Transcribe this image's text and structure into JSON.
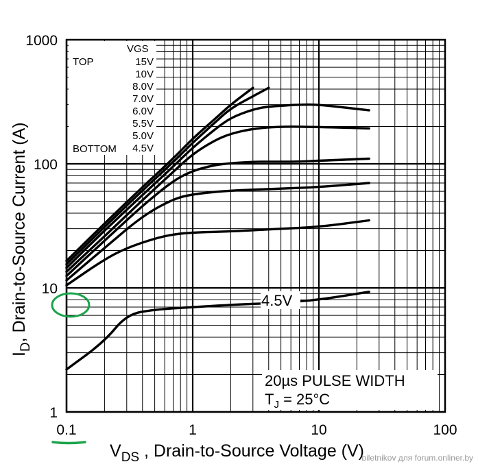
{
  "chart_data": {
    "type": "line",
    "x_scale": "log",
    "y_scale": "log",
    "xlim": [
      0.1,
      100
    ],
    "ylim": [
      1,
      1000
    ],
    "grid": true,
    "xlabel_prefix": "V",
    "xlabel_sub": "DS",
    "xlabel_suffix": " , Drain-to-Source Voltage (V)",
    "ylabel_prefix": "I",
    "ylabel_sub": "D",
    "ylabel_suffix": ",  Drain-to-Source Current (A)",
    "x_ticks": [
      {
        "value": 0.1,
        "label": "0.1"
      },
      {
        "value": 1,
        "label": "1"
      },
      {
        "value": 10,
        "label": "10"
      },
      {
        "value": 100,
        "label": "100"
      }
    ],
    "y_ticks": [
      {
        "value": 1,
        "label": "1"
      },
      {
        "value": 10,
        "label": "10"
      },
      {
        "value": 100,
        "label": "100"
      },
      {
        "value": 1000,
        "label": "1000"
      }
    ],
    "legend": {
      "placement": "top-left",
      "header": "VGS",
      "top_label": "TOP",
      "bottom_label": "BOTTOM",
      "entries": [
        "15V",
        "10V",
        "8.0V",
        "7.0V",
        "6.0V",
        "5.5V",
        "5.0V",
        "4.5V"
      ]
    },
    "series": [
      {
        "name": "15V",
        "points": [
          [
            0.1,
            16.5
          ],
          [
            0.2,
            33
          ],
          [
            0.4,
            65
          ],
          [
            0.7,
            110
          ],
          [
            1,
            160
          ],
          [
            1.5,
            230
          ],
          [
            2,
            300
          ],
          [
            3,
            410
          ]
        ]
      },
      {
        "name": "10V",
        "points": [
          [
            0.1,
            15.5
          ],
          [
            0.2,
            31
          ],
          [
            0.4,
            61
          ],
          [
            0.7,
            103
          ],
          [
            1,
            148
          ],
          [
            1.5,
            215
          ],
          [
            2,
            280
          ],
          [
            3,
            350
          ],
          [
            4,
            410
          ]
        ]
      },
      {
        "name": "8.0V",
        "points": [
          [
            0.1,
            14.5
          ],
          [
            0.2,
            29
          ],
          [
            0.4,
            56
          ],
          [
            0.7,
            95
          ],
          [
            1,
            135
          ],
          [
            1.5,
            190
          ],
          [
            2,
            235
          ],
          [
            3,
            275
          ],
          [
            4,
            290
          ],
          [
            7,
            300
          ],
          [
            10,
            300
          ],
          [
            25,
            270
          ]
        ]
      },
      {
        "name": "7.0V",
        "points": [
          [
            0.1,
            13.5
          ],
          [
            0.2,
            26
          ],
          [
            0.4,
            51
          ],
          [
            0.7,
            86
          ],
          [
            1,
            120
          ],
          [
            1.5,
            155
          ],
          [
            2,
            175
          ],
          [
            3,
            192
          ],
          [
            5,
            200
          ],
          [
            10,
            198
          ],
          [
            25,
            193
          ]
        ]
      },
      {
        "name": "6.0V",
        "points": [
          [
            0.1,
            12.5
          ],
          [
            0.2,
            24
          ],
          [
            0.4,
            46
          ],
          [
            0.7,
            73
          ],
          [
            1,
            88
          ],
          [
            1.5,
            98
          ],
          [
            2,
            101
          ],
          [
            3,
            104
          ],
          [
            5,
            104
          ],
          [
            7,
            104
          ],
          [
            10,
            106
          ],
          [
            25,
            110
          ]
        ]
      },
      {
        "name": "5.5V",
        "points": [
          [
            0.1,
            11.5
          ],
          [
            0.2,
            21
          ],
          [
            0.4,
            38
          ],
          [
            0.7,
            52
          ],
          [
            1,
            57
          ],
          [
            2,
            61
          ],
          [
            5,
            63
          ],
          [
            10,
            65
          ],
          [
            25,
            70
          ]
        ]
      },
      {
        "name": "5.0V",
        "points": [
          [
            0.1,
            10.5
          ],
          [
            0.2,
            17
          ],
          [
            0.3,
            21
          ],
          [
            0.5,
            25
          ],
          [
            0.7,
            27
          ],
          [
            1,
            28
          ],
          [
            2,
            28.5
          ],
          [
            5,
            30
          ],
          [
            10,
            31
          ],
          [
            25,
            35
          ]
        ]
      },
      {
        "name": "4.5V",
        "points": [
          [
            0.1,
            2.2
          ],
          [
            0.2,
            3.7
          ],
          [
            0.3,
            6.1
          ],
          [
            0.5,
            6.7
          ],
          [
            1,
            7.0
          ],
          [
            2,
            7.3
          ],
          [
            5,
            7.6
          ],
          [
            10,
            8.0
          ],
          [
            25,
            9.3
          ]
        ]
      }
    ],
    "annotations": {
      "curve_label": "4.5V",
      "pulse_note": "20µs PULSE WIDTH",
      "tj_prefix": "T",
      "tj_sub": "J",
      "tj_suffix": " = 25°C"
    },
    "highlight_color": "#1aa34a",
    "watermark": "biletnikov для forum.onliner.by"
  }
}
